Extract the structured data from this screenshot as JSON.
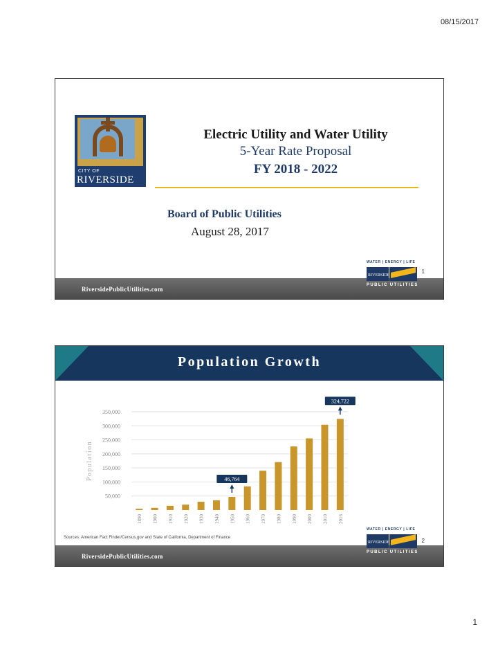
{
  "page": {
    "date": "08/15/2017",
    "page_number": "1"
  },
  "slide1": {
    "logo": {
      "city_of": "CITY OF",
      "name": "RIVERSIDE"
    },
    "title_line1": "Electric Utility and Water Utility",
    "title_line2": "5-Year Rate Proposal",
    "title_line3": "FY 2018 - 2022",
    "board": "Board of Public Utilities",
    "date": "August 28, 2017",
    "slide_number": "1",
    "footer": "RiversidePublicUtilities.com"
  },
  "rpu_logo": {
    "tagline": "WATER | ENERGY | LIFE",
    "name": "RIVERSIDE",
    "sub": "PUBLIC UTILITIES"
  },
  "slide2": {
    "title": "Population Growth",
    "sources": "Sources: American Fact Finder/Census.gov and State of California, Department of Finance",
    "slide_number": "2",
    "footer": "RiversidePublicUtilities.com"
  },
  "colors": {
    "navy": "#17365d",
    "teal": "#1e7a86",
    "gold": "#c8962a",
    "rule_gold": "#e2b521"
  },
  "chart_data": {
    "type": "bar",
    "title": "Population Growth",
    "ylabel": "Population",
    "xlabel": "",
    "categories": [
      "1890",
      "1900",
      "1910",
      "1920",
      "1930",
      "1940",
      "1950",
      "1960",
      "1970",
      "1980",
      "1990",
      "2000",
      "2010",
      "2016"
    ],
    "values": [
      4683,
      7973,
      15212,
      19341,
      29696,
      34696,
      46764,
      84332,
      140089,
      170876,
      226505,
      255166,
      303871,
      324722
    ],
    "ylim": [
      0,
      350000
    ],
    "yticks": [
      50000,
      100000,
      150000,
      200000,
      250000,
      300000,
      350000
    ],
    "ytick_labels": [
      "50,000",
      "100,000",
      "150,000",
      "200,000",
      "250,000",
      "300,000",
      "350,000"
    ],
    "grid": true,
    "annotations": [
      {
        "category": "1950",
        "label": "46,764"
      },
      {
        "category": "2016",
        "label": "324,722"
      }
    ]
  }
}
